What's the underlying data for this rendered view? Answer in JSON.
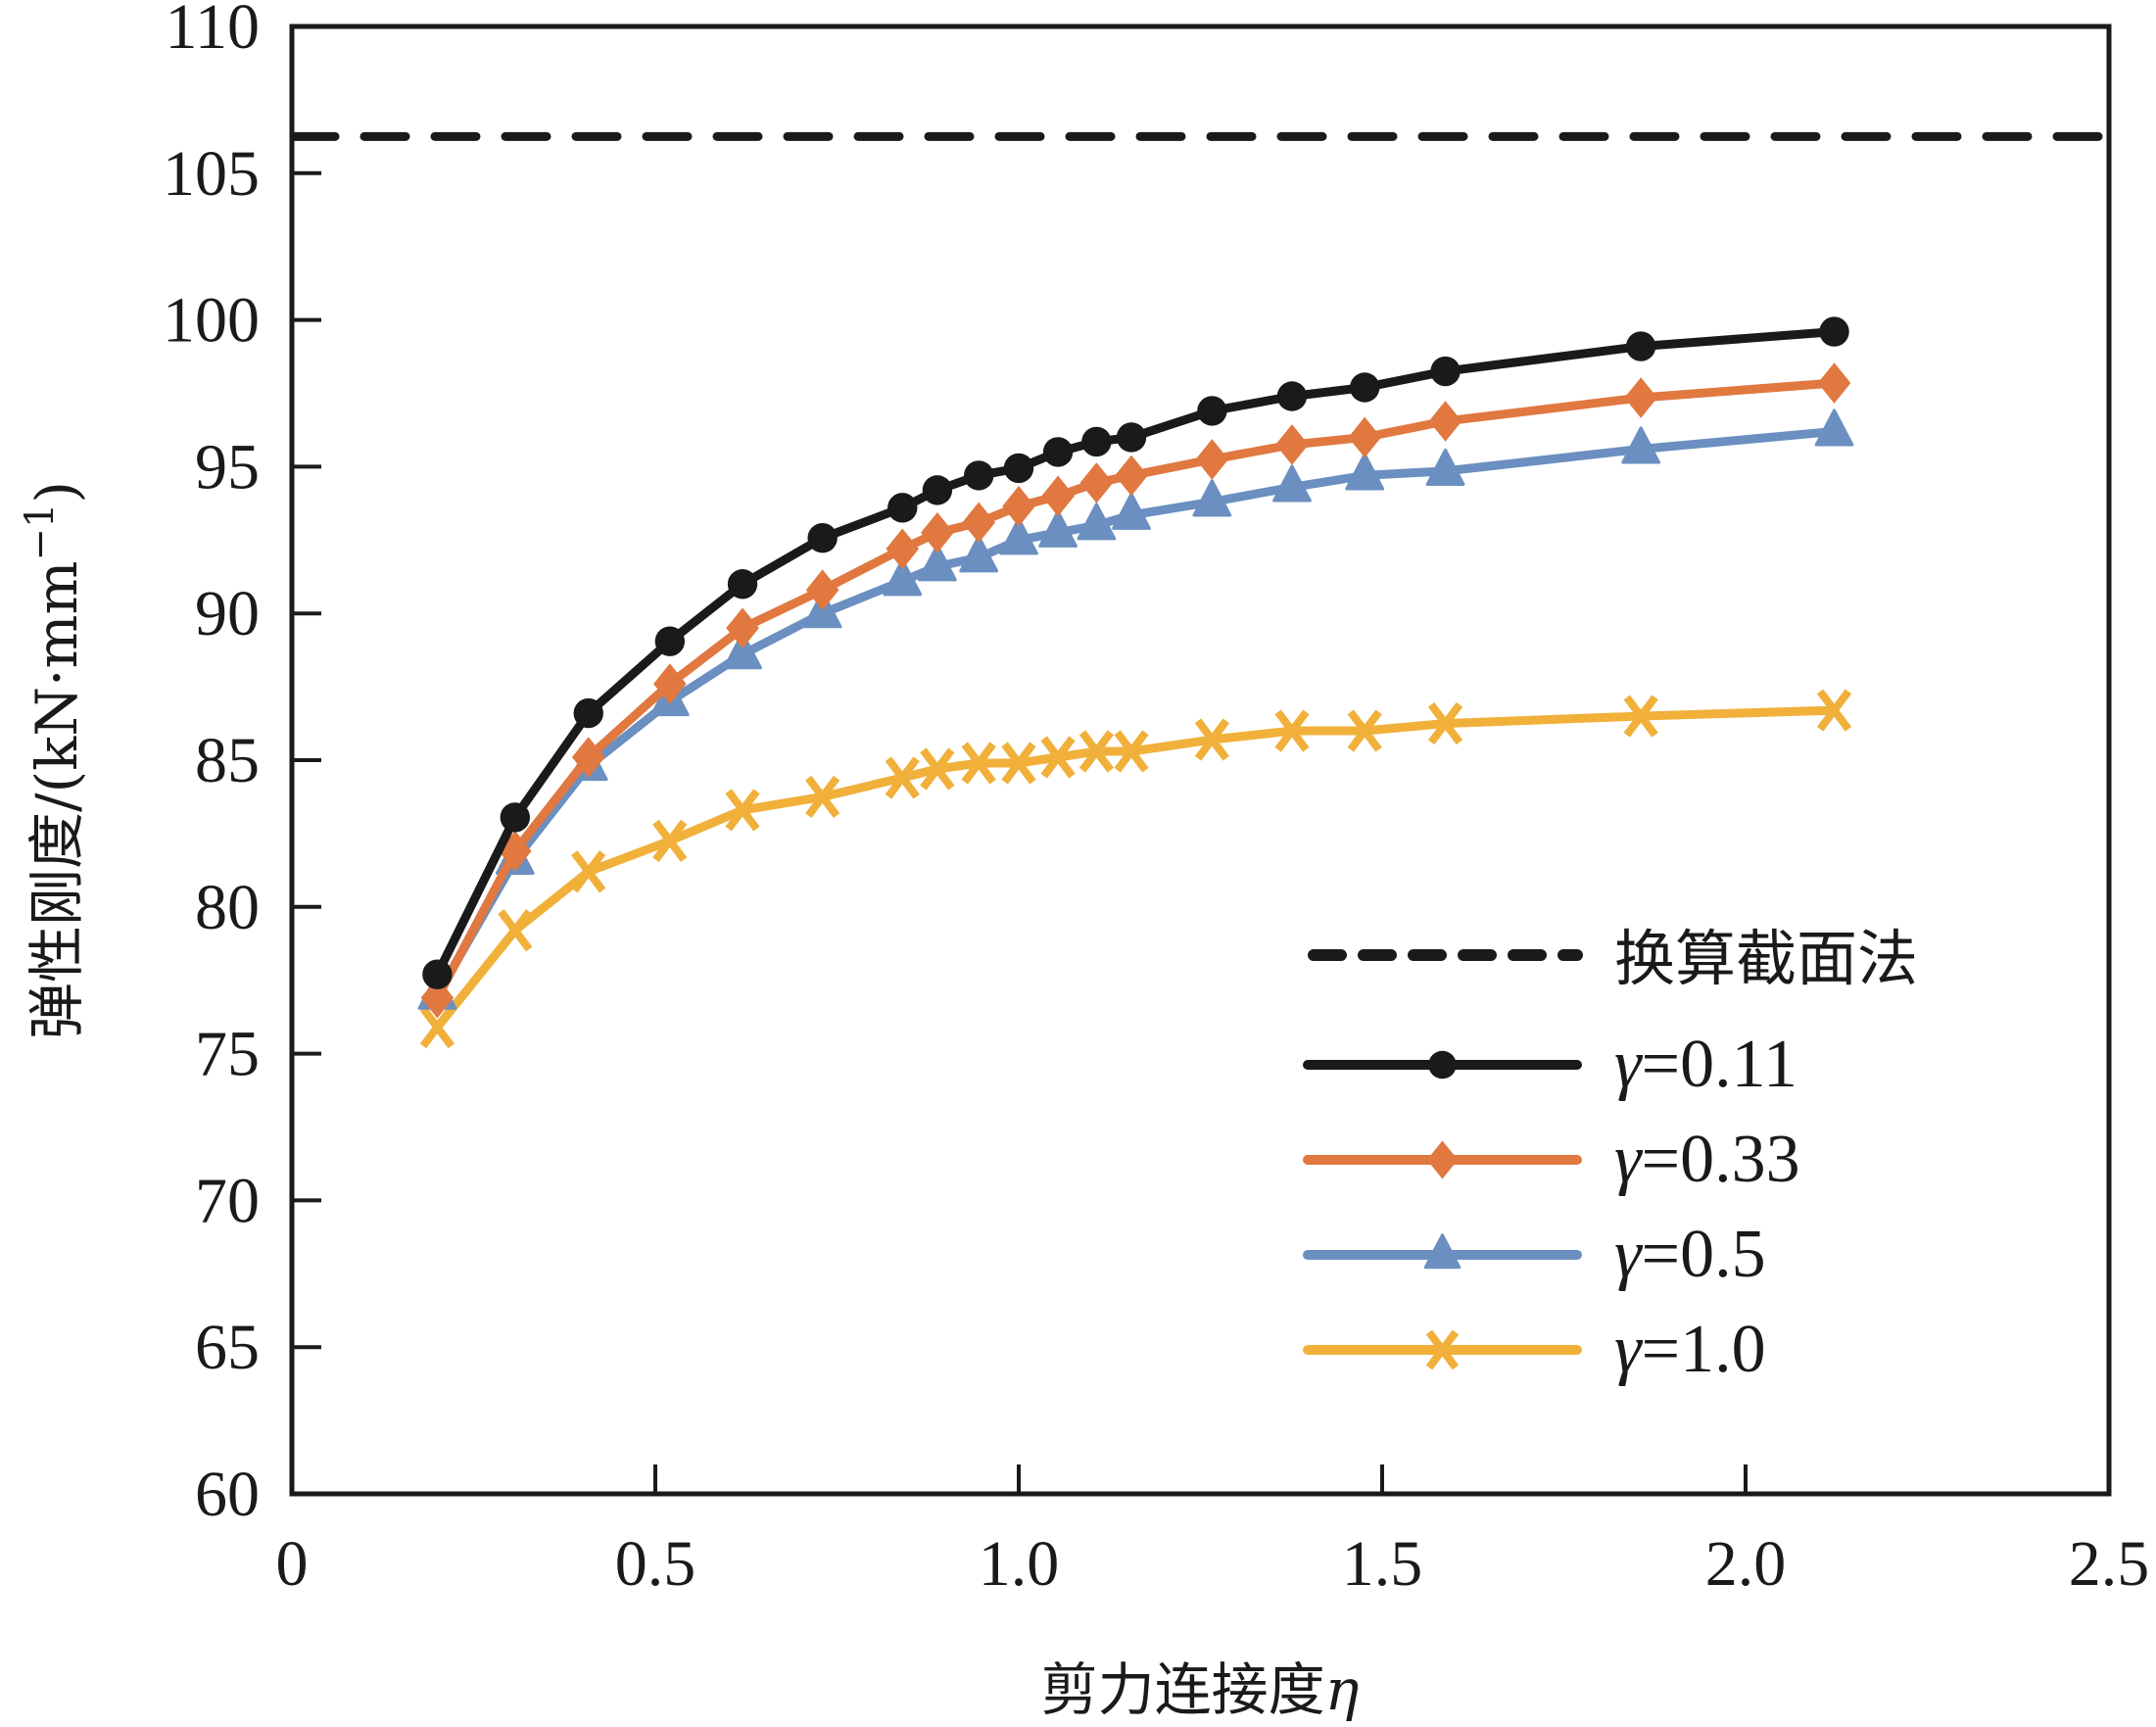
{
  "chart_data": {
    "type": "line",
    "title": "",
    "xlabel": "剪力连接度η",
    "xlabel_main": "剪力连接度",
    "xlabel_symbol": "η",
    "ylabel": "弹性刚度/(kN·mm⁻¹)",
    "ylabel_main": "弹性刚度/(kN·mm",
    "ylabel_sup": "−1",
    "ylabel_close": ")",
    "xlim": [
      0,
      2.5
    ],
    "ylim": [
      60,
      110
    ],
    "xticks": [
      0,
      0.5,
      1.0,
      1.5,
      2.0,
      2.5
    ],
    "xtick_labels": [
      "0",
      "0.5",
      "1.0",
      "1.5",
      "2.0",
      "2.5"
    ],
    "yticks": [
      60,
      65,
      70,
      75,
      80,
      85,
      90,
      95,
      100,
      105,
      110
    ],
    "ytick_labels": [
      "60",
      "65",
      "70",
      "75",
      "80",
      "85",
      "90",
      "95",
      "100",
      "105",
      "110"
    ],
    "grid": false,
    "legend_position": "bottom-right",
    "x": [
      0.2,
      0.307,
      0.408,
      0.52,
      0.62,
      0.73,
      0.84,
      0.888,
      0.945,
      1.0,
      1.054,
      1.107,
      1.155,
      1.266,
      1.376,
      1.476,
      1.587,
      1.856,
      2.122
    ],
    "reference_line": {
      "name": "换算截面法",
      "value": 106.25,
      "color": "#1a1a1a",
      "style": "dashed"
    },
    "series": [
      {
        "name": "γ=0.11",
        "symbol": "γ",
        "label_value": "=0.11",
        "color": "#1a1a1a",
        "marker": "circle",
        "values": [
          77.7,
          83.05,
          86.6,
          89.05,
          91.0,
          92.57,
          93.6,
          94.2,
          94.7,
          94.95,
          95.5,
          95.85,
          96.0,
          96.9,
          97.4,
          97.7,
          98.25,
          99.1,
          99.6
        ]
      },
      {
        "name": "γ=0.33",
        "symbol": "γ",
        "label_value": "=0.33",
        "color": "#e07840",
        "marker": "diamond",
        "values": [
          76.9,
          81.9,
          85.1,
          87.6,
          89.5,
          90.8,
          92.2,
          92.75,
          93.1,
          93.65,
          94.0,
          94.45,
          94.7,
          95.25,
          95.75,
          96.0,
          96.55,
          97.35,
          97.85
        ]
      },
      {
        "name": "γ=0.5",
        "symbol": "γ",
        "label_value": "=0.5",
        "color": "#6a8fc0",
        "marker": "triangle",
        "values": [
          77.0,
          81.6,
          84.8,
          87.0,
          88.6,
          90.0,
          91.1,
          91.6,
          91.9,
          92.5,
          92.75,
          93.0,
          93.35,
          93.8,
          94.3,
          94.7,
          94.85,
          95.6,
          96.2
        ]
      },
      {
        "name": "γ=1.0",
        "symbol": "γ",
        "label_value": "=1.0",
        "color": "#f0b03a",
        "marker": "x",
        "values": [
          75.9,
          79.2,
          81.2,
          82.25,
          83.3,
          83.75,
          84.4,
          84.7,
          84.9,
          84.9,
          85.1,
          85.3,
          85.3,
          85.7,
          86.0,
          86.0,
          86.25,
          86.5,
          86.7
        ]
      }
    ]
  }
}
